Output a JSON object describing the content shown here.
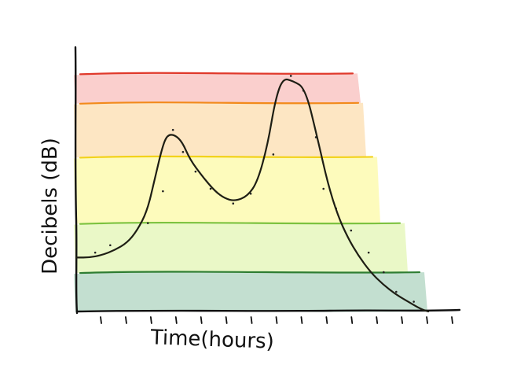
{
  "chart_data": {
    "type": "line",
    "title": "",
    "xlabel": "Time(hours)",
    "ylabel": "Decibels (dB)",
    "xlim": [
      0,
      14
    ],
    "ylim": [
      0,
      10
    ],
    "grid": false,
    "zones": [
      {
        "from": 0,
        "to": 1.6,
        "color": "#b9d9c8",
        "line_color": "#2e7d32"
      },
      {
        "from": 1.6,
        "to": 3.6,
        "color": "#e6f7bd",
        "line_color": "#7cc23f"
      },
      {
        "from": 3.6,
        "to": 6.3,
        "color": "#fdfab0",
        "line_color": "#f2d21b"
      },
      {
        "from": 6.3,
        "to": 8.5,
        "color": "#fde2b8",
        "line_color": "#f28a1b"
      },
      {
        "from": 8.5,
        "to": 9.7,
        "color": "#f9c7c4",
        "line_color": "#e0392b"
      }
    ],
    "x_ticks": 14,
    "series": [
      {
        "name": "",
        "x": [
          0,
          0.5,
          1.0,
          1.5,
          2.0,
          2.4,
          2.8,
          3.1,
          3.4,
          3.6,
          3.9,
          4.2,
          4.5,
          5.0,
          5.5,
          5.9,
          6.3,
          6.8,
          7.2,
          7.6,
          7.9,
          8.2,
          8.6,
          9.1,
          9.6,
          10.0,
          10.4,
          10.8,
          11.2,
          11.7,
          12.2,
          12.7,
          13.2,
          13.7,
          14.0
        ],
        "y": [
          2.2,
          2.2,
          2.3,
          2.5,
          2.8,
          3.3,
          4.1,
          5.4,
          6.7,
          7.2,
          7.2,
          6.9,
          6.2,
          5.5,
          4.9,
          4.6,
          4.5,
          4.7,
          5.3,
          6.8,
          8.6,
          9.5,
          9.4,
          9.1,
          7.0,
          5.2,
          3.9,
          3.0,
          2.3,
          1.6,
          1.1,
          0.7,
          0.4,
          0.1,
          0.0
        ]
      }
    ],
    "scatter": {
      "x": [
        0.6,
        1.2,
        2.7,
        3.3,
        3.7,
        4.1,
        4.6,
        5.2,
        6.1,
        6.8,
        7.7,
        8.4,
        8.9,
        9.4,
        9.7,
        10.2,
        10.8,
        11.5,
        12.1,
        12.6,
        13.3
      ],
      "y": [
        2.4,
        2.7,
        3.6,
        4.9,
        7.4,
        6.5,
        5.7,
        5.0,
        4.4,
        4.8,
        6.4,
        9.6,
        9.0,
        7.1,
        5.0,
        4.2,
        3.3,
        2.4,
        1.6,
        0.8,
        0.4
      ]
    }
  }
}
